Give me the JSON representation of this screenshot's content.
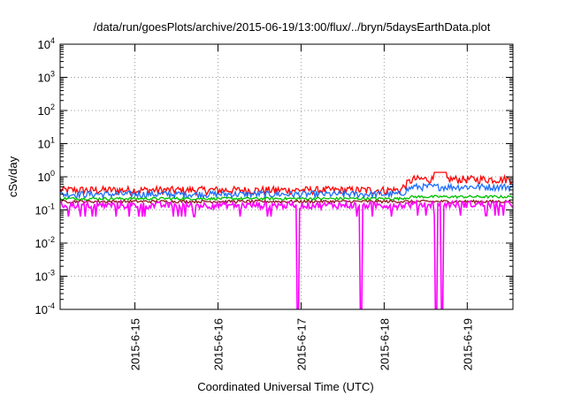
{
  "chart_data": {
    "type": "line",
    "title": "/data/run/goesPlots/archive/2015-06-19/13:00/flux/../bryn/5daysEarthData.plot",
    "xlabel": "Coordinated Universal Time (UTC)",
    "ylabel": "cSv/day",
    "yscale": "log",
    "ylim_exp": [
      -4,
      4
    ],
    "y_tick_exponents": [
      -4,
      -3,
      -2,
      -1,
      0,
      1,
      2,
      3,
      4
    ],
    "y_tick_base": "10",
    "xlim_days": [
      "2015-6-14.1",
      "2015-6-19.55"
    ],
    "x_ticks": [
      "2015-6-15",
      "2015-6-16",
      "2015-6-17",
      "2015-6-18",
      "2015-6-19"
    ],
    "grid": true,
    "legend": "none",
    "series": [
      {
        "color": "#ff0000",
        "base": 0.4,
        "base_after": 0.85,
        "amp": 0.35
      },
      {
        "color": "#1e6fff",
        "base": 0.3,
        "base_after": 0.5,
        "amp": 0.3
      },
      {
        "color": "#00c000",
        "base": 0.22,
        "base_after": 0.25,
        "amp": 0.12
      },
      {
        "color": "#8b1a1a",
        "base": 0.18,
        "base_after": 0.18,
        "amp": 0.12
      },
      {
        "color": "#ff00ff",
        "base": 0.14,
        "base_after": 0.15,
        "amp": 0.3
      }
    ],
    "dropouts": [
      "2015-6-16.96",
      "2015-6-17.72",
      "2015-6-18.62",
      "2015-6-18.70"
    ],
    "step_up_date": "2015-6-18.2"
  }
}
